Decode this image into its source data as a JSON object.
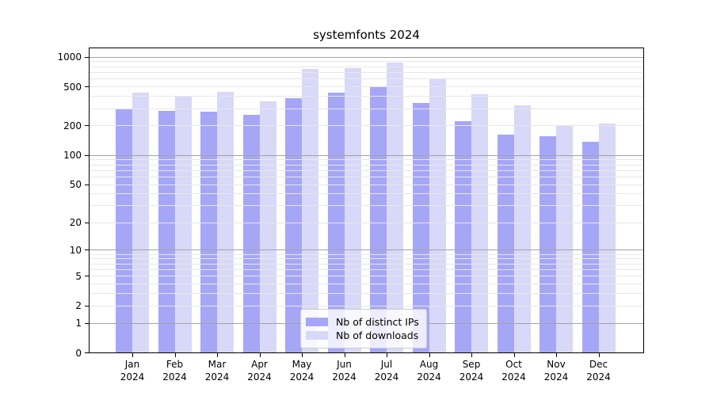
{
  "chart_data": {
    "type": "bar",
    "title": "systemfonts 2024",
    "categories": [
      "Jan 2024",
      "Feb 2024",
      "Mar 2024",
      "Apr 2024",
      "May 2024",
      "Jun 2024",
      "Jul 2024",
      "Aug 2024",
      "Sep 2024",
      "Oct 2024",
      "Nov 2024",
      "Dec 2024"
    ],
    "series": [
      {
        "name": "Nb of distinct IPs",
        "color": "#a6a6f7",
        "values": [
          300,
          280,
          278,
          255,
          380,
          435,
          490,
          340,
          220,
          163,
          157,
          136
        ]
      },
      {
        "name": "Nb of downloads",
        "color": "#d8d8f8",
        "values": [
          430,
          395,
          440,
          350,
          760,
          775,
          875,
          605,
          413,
          320,
          200,
          208
        ]
      }
    ],
    "yscale": "log1p",
    "ylim": [
      0,
      1220
    ],
    "y_ticks": [
      1000,
      500,
      200,
      100,
      50,
      20,
      10,
      5,
      2,
      1,
      0
    ],
    "grid": {
      "major_values": [
        1,
        10,
        100,
        1000
      ],
      "minor_values": [
        2,
        3,
        4,
        5,
        6,
        7,
        8,
        9,
        20,
        30,
        40,
        50,
        60,
        70,
        80,
        90,
        200,
        300,
        400,
        500,
        600,
        700,
        800,
        900
      ],
      "major_color": "#a3a3a3",
      "minor_color": "#e7e7e7"
    },
    "legend_position": "lower center",
    "axis_color": "#000000",
    "background_color": "#ffffff"
  }
}
